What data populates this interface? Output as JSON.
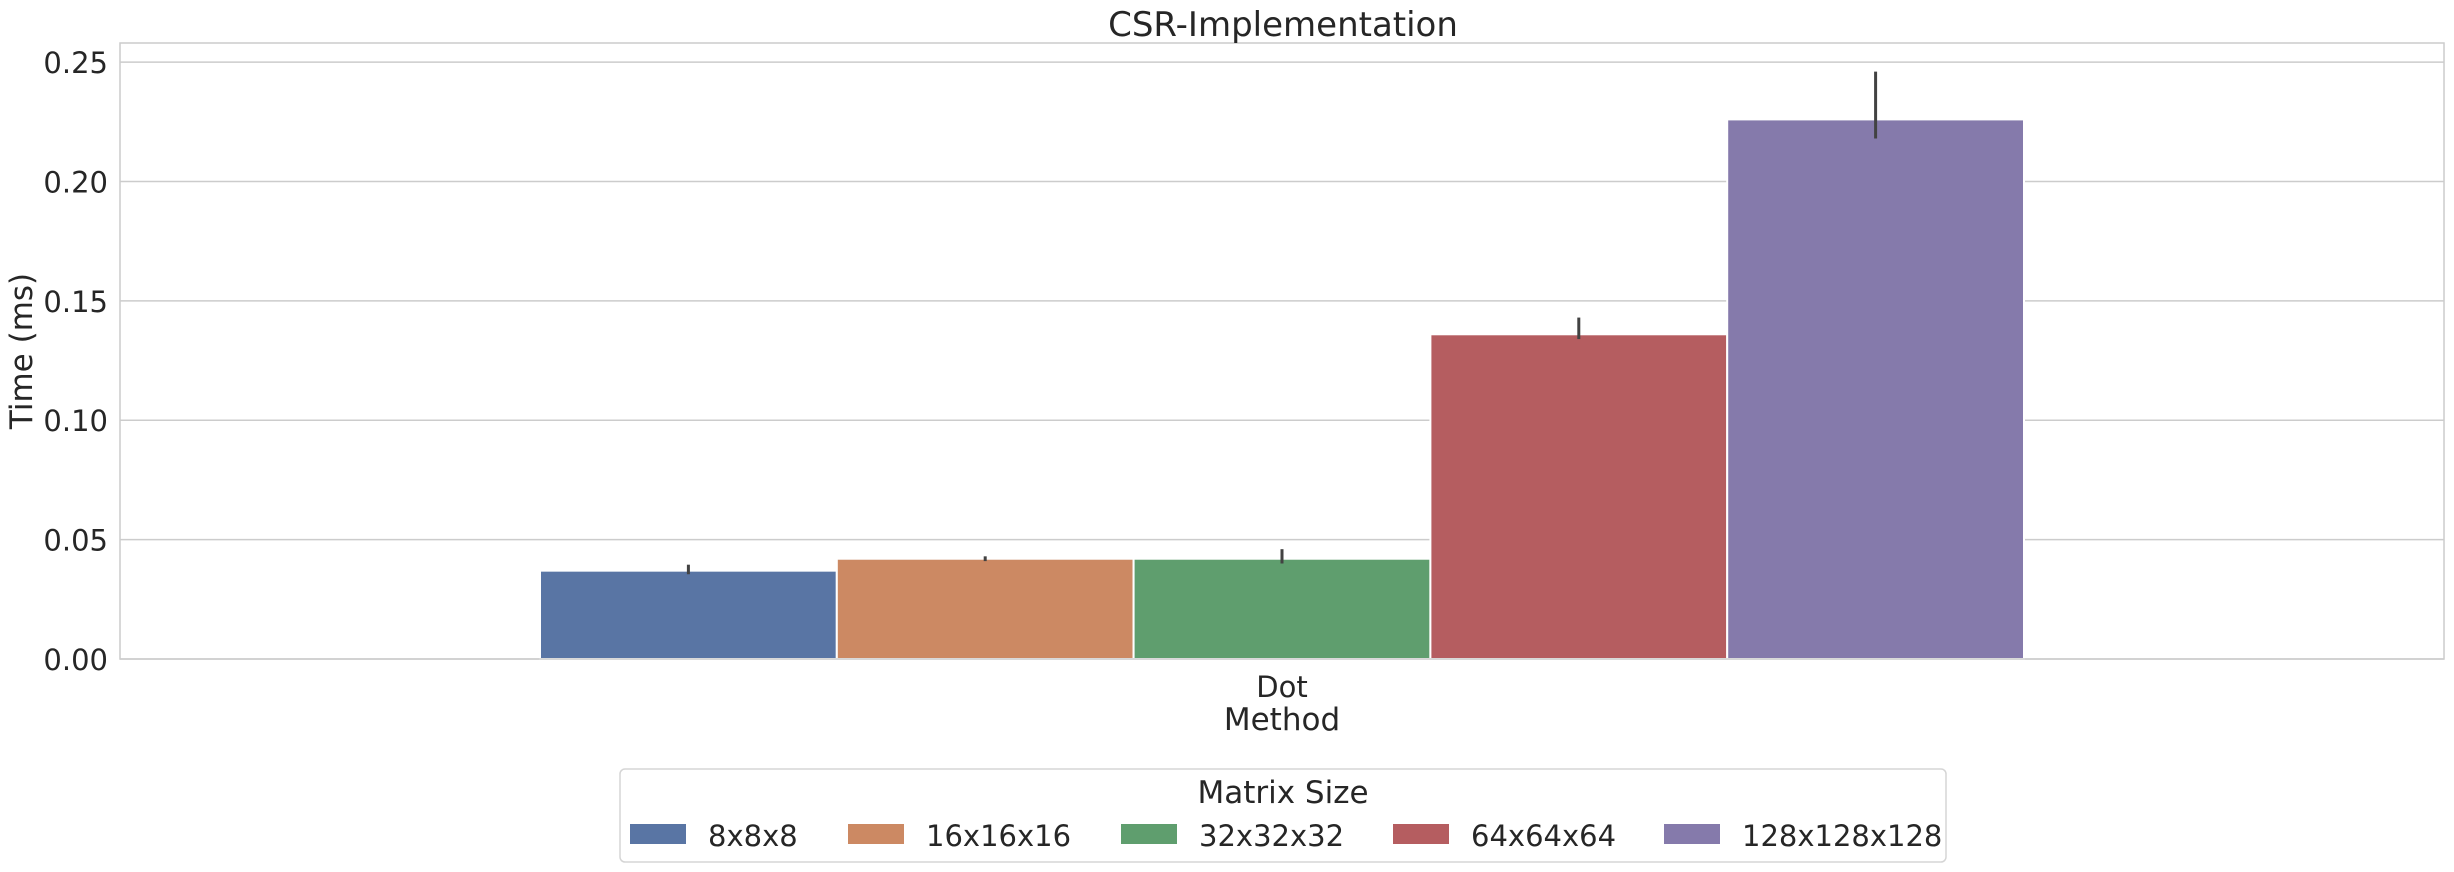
{
  "chart_data": {
    "type": "bar",
    "title": "CSR-Implementation",
    "xlabel": "Method",
    "ylabel": "Time (ms)",
    "categories": [
      "Dot"
    ],
    "ylim": [
      0,
      0.258
    ],
    "yticks": [
      "0.00",
      "0.05",
      "0.10",
      "0.15",
      "0.20",
      "0.25"
    ],
    "grid": true,
    "legend_title": "Matrix Size",
    "legend_position": "bottom-center",
    "series": [
      {
        "name": "8x8x8",
        "values": [
          0.037
        ],
        "error": [
          0.0355,
          0.0395
        ],
        "color": "#5975a4"
      },
      {
        "name": "16x16x16",
        "values": [
          0.042
        ],
        "error": [
          0.041,
          0.043
        ],
        "color": "#cc8963"
      },
      {
        "name": "32x32x32",
        "values": [
          0.042
        ],
        "error": [
          0.04,
          0.046
        ],
        "color": "#5f9e6e"
      },
      {
        "name": "64x64x64",
        "values": [
          0.136
        ],
        "error": [
          0.134,
          0.143
        ],
        "color": "#b55d60"
      },
      {
        "name": "128x128x128",
        "values": [
          0.226
        ],
        "error": [
          0.218,
          0.246
        ],
        "color": "#857aab"
      }
    ]
  }
}
